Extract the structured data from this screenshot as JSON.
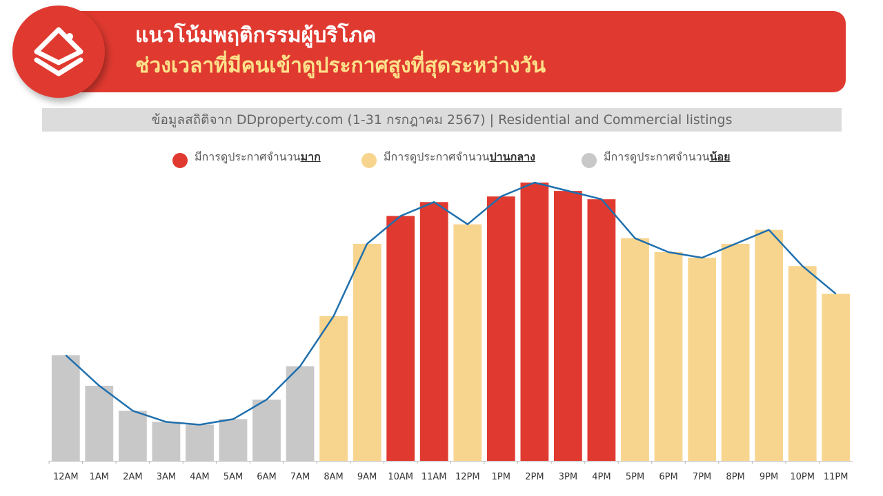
{
  "header": {
    "title_line1": "แนวโน้มพฤติกรรมผู้บริโภค",
    "title_line2": "ช่วงเวลาที่มีคนเข้าดูประกาศสูงที่สุดระหว่างวัน"
  },
  "source_note": "ข้อมูลสถิติจาก DDproperty.com (1-31 กรกฎาคม 2567) | Residential and Commercial listings",
  "legend": {
    "high": {
      "prefix": "มีการดูประกาศจำนวน",
      "emph": "มาก",
      "color": "#e03a30"
    },
    "medium": {
      "prefix": "มีการดูประกาศจำนวน",
      "emph": "ปานกลาง",
      "color": "#f8d58f"
    },
    "low": {
      "prefix": "มีการดูประกาศจำนวน",
      "emph": "น้อย",
      "color": "#c8c8c8"
    }
  },
  "logo": {
    "icon": "ddproperty-house-logo-icon"
  },
  "chart_data": {
    "type": "bar",
    "categories": [
      "12AM",
      "1AM",
      "2AM",
      "3AM",
      "4AM",
      "5AM",
      "6AM",
      "7AM",
      "8AM",
      "9AM",
      "10AM",
      "11AM",
      "12PM",
      "1PM",
      "2PM",
      "3PM",
      "4PM",
      "5PM",
      "6PM",
      "7PM",
      "8PM",
      "9PM",
      "10PM",
      "11PM"
    ],
    "values": [
      38,
      27,
      18,
      14,
      13,
      15,
      22,
      34,
      52,
      78,
      88,
      93,
      85,
      95,
      100,
      97,
      94,
      80,
      75,
      73,
      78,
      83,
      70,
      60
    ],
    "levels": [
      "low",
      "low",
      "low",
      "low",
      "low",
      "low",
      "low",
      "low",
      "medium",
      "medium",
      "high",
      "high",
      "medium",
      "high",
      "high",
      "high",
      "high",
      "medium",
      "medium",
      "medium",
      "medium",
      "medium",
      "medium",
      "medium"
    ],
    "trend_line": [
      38,
      27,
      18,
      14,
      13,
      15,
      22,
      34,
      52,
      78,
      88,
      93,
      85,
      95,
      100,
      97,
      94,
      80,
      75,
      73,
      78,
      83,
      70,
      60
    ],
    "trend_color": "#1f6fad",
    "ylim": [
      0,
      100
    ],
    "grid": false,
    "legend_position": "top",
    "y_axis_visible": false
  }
}
